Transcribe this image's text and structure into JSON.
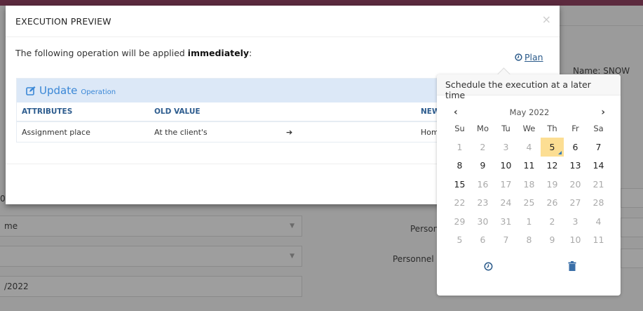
{
  "background": {
    "name_label": "Name: SNOW",
    "left_fragment": "0",
    "select1": "me",
    "input_value": "/2022",
    "person_label": "Person",
    "personnel_label": "Personnel ("
  },
  "modal": {
    "title": "EXECUTION PREVIEW",
    "close": "×",
    "intro_prefix": "The following operation will be applied ",
    "intro_bold": "immediately",
    "intro_suffix": ":",
    "plan_link": "Plan",
    "operation": {
      "type": "Update",
      "subtitle": "Operation",
      "columns": [
        "ATTRIBUTES",
        "OLD VALUE",
        "",
        "NEW"
      ],
      "rows": [
        {
          "attribute": "Assignment place",
          "old": "At the client's",
          "arrow": "➔",
          "new": "Hom"
        }
      ]
    }
  },
  "popover": {
    "title": "Schedule the execution at a later time",
    "month": "May 2022",
    "prev": "‹",
    "next": "›",
    "weekdays": [
      "Su",
      "Mo",
      "Tu",
      "We",
      "Th",
      "Fr",
      "Sa"
    ],
    "selected_day": "5",
    "weeks": [
      [
        "1",
        "2",
        "3",
        "4",
        "5",
        "6",
        "7"
      ],
      [
        "8",
        "9",
        "10",
        "11",
        "12",
        "13",
        "14"
      ],
      [
        "15",
        "16",
        "17",
        "18",
        "19",
        "20",
        "21"
      ],
      [
        "22",
        "23",
        "24",
        "25",
        "26",
        "27",
        "28"
      ],
      [
        "29",
        "30",
        "31",
        "1",
        "2",
        "3",
        "4"
      ],
      [
        "5",
        "6",
        "7",
        "8",
        "9",
        "10",
        "11"
      ]
    ],
    "muted": [
      [
        1,
        1,
        1,
        1,
        0,
        0,
        0
      ],
      [
        0,
        0,
        0,
        0,
        0,
        0,
        0
      ],
      [
        0,
        1,
        1,
        1,
        1,
        1,
        1
      ],
      [
        1,
        1,
        1,
        1,
        1,
        1,
        1
      ],
      [
        1,
        1,
        1,
        1,
        1,
        1,
        1
      ],
      [
        1,
        1,
        1,
        1,
        1,
        1,
        1
      ]
    ],
    "time_icon": "clock-icon",
    "clear_icon": "trash-icon"
  },
  "colors": {
    "topbar": "#5c2a3e",
    "accent": "#3a87d6",
    "selected": "#fcde93"
  }
}
